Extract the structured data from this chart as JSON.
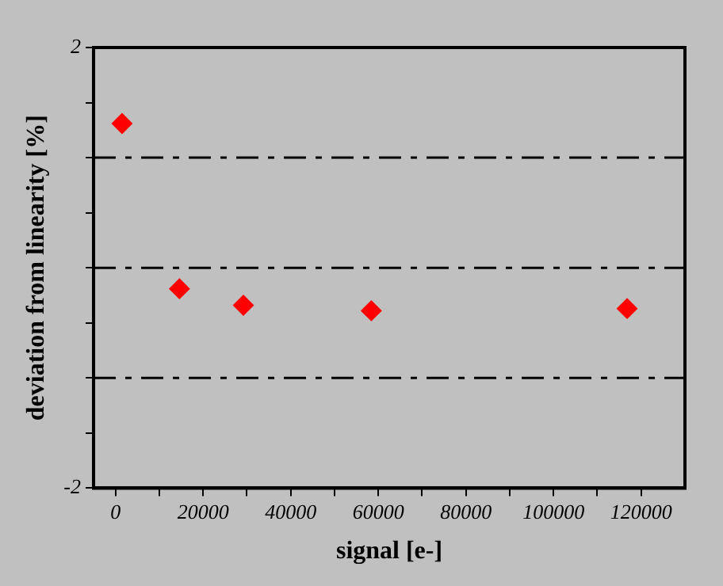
{
  "chart_data": {
    "type": "scatter",
    "xlabel": "signal [e-]",
    "ylabel": "deviation from linearity [%]",
    "x": [
      1500,
      14600,
      29200,
      58400,
      116800
    ],
    "values": [
      1.31,
      -0.19,
      -0.34,
      -0.39,
      -0.37
    ],
    "color": "#ff0000",
    "marker": "diamond",
    "xlim": [
      -5000,
      130000
    ],
    "xticks": [
      0,
      {
        "value": 10000,
        "label": null
      },
      20000,
      {
        "value": 30000,
        "label": null
      },
      40000,
      {
        "value": 50000,
        "label": null
      },
      60000,
      {
        "value": 70000,
        "label": null
      },
      80000,
      {
        "value": 90000,
        "label": null
      },
      100000,
      {
        "value": 110000,
        "label": null
      },
      120000
    ],
    "ylim": [
      -2,
      2
    ],
    "yticks": [
      -2,
      {
        "value": -1.5,
        "label": null
      },
      {
        "value": -1,
        "label": null
      },
      {
        "value": -0.5,
        "label": null
      },
      {
        "value": 0,
        "label": null
      },
      {
        "value": 0.5,
        "label": null
      },
      {
        "value": 1,
        "label": null
      },
      {
        "value": 1.5,
        "label": null
      },
      2
    ],
    "ref_lines": [
      {
        "axis": "y",
        "value": 1,
        "color": "#000000",
        "line_style": "dashdot"
      },
      {
        "axis": "y",
        "value": 0,
        "color": "#000000",
        "line_style": "dashdot"
      },
      {
        "axis": "y",
        "value": -1,
        "color": "#000000",
        "line_style": "dashdot"
      }
    ],
    "legend": false
  }
}
